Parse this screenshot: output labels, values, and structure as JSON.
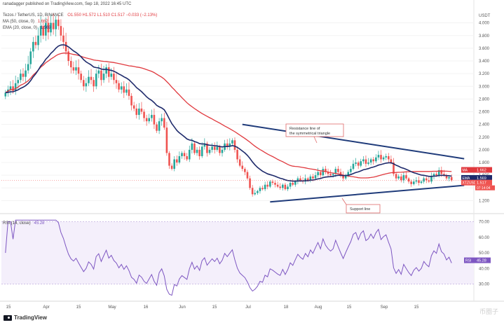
{
  "header": {
    "attribution": "ranadagger published on TradingView.com, Sep 18, 2022 16:45 UTC",
    "symbol_line": "Tezos / TetherUS, 1D, BINANCE",
    "ohlc": "O1.550  H1.572  L1.510  C1.517  −0.033 (−2.13%)",
    "ma_line": "MA (50, close, 0)",
    "ma_value": "1.662",
    "ema_line": "EMA (20, close, 0)",
    "ema_value": "1.569",
    "rsi_line": "RSI (14, close)",
    "rsi_value": "45.28"
  },
  "footer": {
    "brand": "TradingView",
    "watermark": "币圈子"
  },
  "colors": {
    "up": "#26a69a",
    "down": "#ef5350",
    "ma": "#e0393e",
    "ema": "#1e2a6b",
    "trendline": "#1f3b7a",
    "rsi": "#7e57c2",
    "rsi_band": "#f4effb"
  },
  "chart_data": [
    {
      "type": "candlestick",
      "title": "Tezos / TetherUS, 1D, BINANCE",
      "ylabel": "USDT",
      "ylim": [
        1.05,
        4.25
      ],
      "yticks": [
        "1.200",
        "1.400",
        "1.600",
        "1.800",
        "2.000",
        "2.200",
        "2.400",
        "2.600",
        "2.800",
        "3.000",
        "3.200",
        "3.400",
        "3.600",
        "3.800",
        "4.000"
      ],
      "xticks": [
        "15",
        "Apr",
        "15",
        "May",
        "16",
        "Jun",
        "15",
        "Jul",
        "18",
        "Aug",
        "15",
        "Sep",
        "15"
      ],
      "close_series": [
        2.9,
        2.95,
        3.0,
        2.93,
        3.05,
        3.1,
        3.2,
        3.15,
        3.25,
        3.35,
        3.55,
        3.7,
        3.65,
        3.8,
        3.95,
        3.8,
        4.0,
        3.85,
        4.0,
        3.9,
        4.05,
        3.95,
        3.8,
        3.7,
        3.55,
        3.4,
        3.3,
        3.25,
        3.3,
        3.2,
        3.1,
        3.0,
        3.05,
        3.15,
        3.1,
        3.0,
        3.2,
        3.25,
        3.1,
        3.2,
        3.3,
        3.15,
        3.2,
        3.1,
        3.05,
        2.95,
        3.0,
        2.9,
        2.95,
        2.85,
        2.7,
        2.65,
        2.55,
        2.65,
        2.6,
        2.5,
        2.45,
        2.5,
        2.55,
        2.4,
        2.3,
        2.45,
        2.5,
        2.35,
        1.95,
        1.75,
        1.7,
        1.85,
        1.8,
        1.9,
        1.95,
        1.9,
        1.85,
        2.0,
        2.1,
        1.95,
        2.0,
        1.9,
        2.05,
        2.1,
        1.95,
        2.0,
        2.05,
        2.0,
        2.05,
        1.95,
        2.0,
        2.1,
        2.05,
        2.1,
        2.15,
        2.0,
        1.85,
        1.75,
        1.7,
        1.65,
        1.55,
        1.4,
        1.3,
        1.32,
        1.35,
        1.4,
        1.38,
        1.45,
        1.42,
        1.5,
        1.48,
        1.45,
        1.42,
        1.4,
        1.45,
        1.38,
        1.42,
        1.48,
        1.45,
        1.5,
        1.55,
        1.52,
        1.5,
        1.55,
        1.52,
        1.58,
        1.55,
        1.6,
        1.65,
        1.6,
        1.7,
        1.65,
        1.62,
        1.6,
        1.62,
        1.7,
        1.65,
        1.6,
        1.55,
        1.6,
        1.65,
        1.7,
        1.78,
        1.8,
        1.75,
        1.82,
        1.85,
        1.78,
        1.8,
        1.85,
        1.82,
        1.88,
        1.92,
        1.85,
        1.88,
        1.9,
        1.85,
        1.8,
        1.62,
        1.55,
        1.58,
        1.52,
        1.6,
        1.55,
        1.5,
        1.46,
        1.5,
        1.52,
        1.48,
        1.5,
        1.55,
        1.52,
        1.5,
        1.58,
        1.62,
        1.6,
        1.68,
        1.62,
        1.6,
        1.55,
        1.57,
        1.52
      ],
      "series": [
        {
          "name": "MA (50, close, 0)",
          "last": 1.662
        },
        {
          "name": "EMA (20, close, 0)",
          "last": 1.569
        }
      ],
      "price_labels": [
        {
          "name": "MA",
          "value": "1.662"
        },
        {
          "name": "EMA",
          "value": "1.569"
        },
        {
          "name": "XTZUSDT",
          "value": "1.517",
          "countdown": "07:14:04"
        }
      ],
      "annotations": [
        {
          "text": "Resistance line of\nthe symmetrical triangle"
        },
        {
          "text": "Support line"
        }
      ]
    },
    {
      "type": "line",
      "title": "RSI (14, close)",
      "ylim": [
        20,
        72
      ],
      "yticks": [
        "30.00",
        "40.00",
        "50.00",
        "60.00",
        "70.00"
      ],
      "band": [
        30,
        70
      ],
      "last_label": "45.28"
    }
  ]
}
